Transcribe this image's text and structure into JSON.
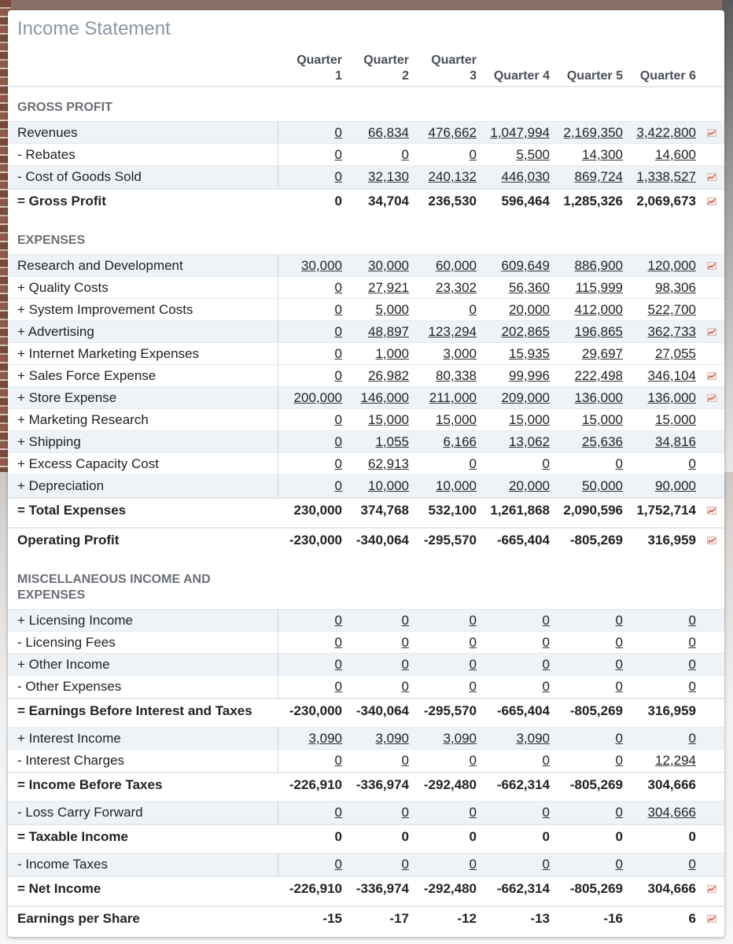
{
  "title": "Income Statement",
  "columns": [
    "Quarter 1",
    "Quarter 2",
    "Quarter 3",
    "Quarter 4",
    "Quarter 5",
    "Quarter 6"
  ],
  "column_headers": [
    [
      "Quarter",
      "1"
    ],
    [
      "Quarter",
      "2"
    ],
    [
      "Quarter",
      "3"
    ],
    [
      "",
      "Quarter 4"
    ],
    [
      "",
      "Quarter 5"
    ],
    [
      "",
      "Quarter 6"
    ]
  ],
  "sections": [
    {
      "title": "GROSS PROFIT"
    },
    {
      "title": "EXPENSES"
    },
    {
      "title": "MISCELLANEOUS INCOME AND EXPENSES"
    }
  ],
  "rows": [
    {
      "label": "Revenues",
      "values": [
        "0",
        "66,834",
        "476,662",
        "1,047,994",
        "2,169,350",
        "3,422,800"
      ],
      "kind": "input",
      "chart": true
    },
    {
      "label": "- Rebates",
      "values": [
        "0",
        "0",
        "0",
        "5,500",
        "14,300",
        "14,600"
      ],
      "kind": "input",
      "chart": false
    },
    {
      "label": "- Cost of Goods Sold",
      "values": [
        "0",
        "32,130",
        "240,132",
        "446,030",
        "869,724",
        "1,338,527"
      ],
      "kind": "input",
      "chart": true
    },
    {
      "label": "= Gross Profit",
      "values": [
        "0",
        "34,704",
        "236,530",
        "596,464",
        "1,285,326",
        "2,069,673"
      ],
      "kind": "total",
      "chart": true
    },
    {
      "label": "Research and Development",
      "values": [
        "30,000",
        "30,000",
        "60,000",
        "609,649",
        "886,900",
        "120,000"
      ],
      "kind": "input",
      "chart": true
    },
    {
      "label": "+ Quality Costs",
      "values": [
        "0",
        "27,921",
        "23,302",
        "56,360",
        "115,999",
        "98,306"
      ],
      "kind": "input",
      "chart": false
    },
    {
      "label": "+ System Improvement Costs",
      "values": [
        "0",
        "5,000",
        "0",
        "20,000",
        "412,000",
        "522,700"
      ],
      "kind": "input",
      "chart": false
    },
    {
      "label": "+ Advertising",
      "values": [
        "0",
        "48,897",
        "123,294",
        "202,865",
        "196,865",
        "362,733"
      ],
      "kind": "input",
      "chart": true
    },
    {
      "label": "+ Internet Marketing Expenses",
      "values": [
        "0",
        "1,000",
        "3,000",
        "15,935",
        "29,697",
        "27,055"
      ],
      "kind": "input",
      "chart": false
    },
    {
      "label": "+ Sales Force Expense",
      "values": [
        "0",
        "26,982",
        "80,338",
        "99,996",
        "222,498",
        "346,104"
      ],
      "kind": "input",
      "chart": true
    },
    {
      "label": "+ Store Expense",
      "values": [
        "200,000",
        "146,000",
        "211,000",
        "209,000",
        "136,000",
        "136,000"
      ],
      "kind": "input",
      "chart": true
    },
    {
      "label": "+ Marketing Research",
      "values": [
        "0",
        "15,000",
        "15,000",
        "15,000",
        "15,000",
        "15,000"
      ],
      "kind": "input",
      "chart": false
    },
    {
      "label": "+ Shipping",
      "values": [
        "0",
        "1,055",
        "6,166",
        "13,062",
        "25,636",
        "34,816"
      ],
      "kind": "input",
      "chart": false
    },
    {
      "label": "+ Excess Capacity Cost",
      "values": [
        "0",
        "62,913",
        "0",
        "0",
        "0",
        "0"
      ],
      "kind": "input",
      "chart": false
    },
    {
      "label": "+ Depreciation",
      "values": [
        "0",
        "10,000",
        "10,000",
        "20,000",
        "50,000",
        "90,000"
      ],
      "kind": "input",
      "chart": false
    },
    {
      "label": "= Total Expenses",
      "values": [
        "230,000",
        "374,768",
        "532,100",
        "1,261,868",
        "2,090,596",
        "1,752,714"
      ],
      "kind": "total",
      "chart": true
    },
    {
      "label": "Operating Profit",
      "values": [
        "-230,000",
        "-340,064",
        "-295,570",
        "-665,404",
        "-805,269",
        "316,959"
      ],
      "kind": "total",
      "chart": true
    },
    {
      "label": "+ Licensing Income",
      "values": [
        "0",
        "0",
        "0",
        "0",
        "0",
        "0"
      ],
      "kind": "input",
      "chart": false
    },
    {
      "label": "- Licensing Fees",
      "values": [
        "0",
        "0",
        "0",
        "0",
        "0",
        "0"
      ],
      "kind": "input",
      "chart": false
    },
    {
      "label": "+ Other Income",
      "values": [
        "0",
        "0",
        "0",
        "0",
        "0",
        "0"
      ],
      "kind": "input",
      "chart": false
    },
    {
      "label": "- Other Expenses",
      "values": [
        "0",
        "0",
        "0",
        "0",
        "0",
        "0"
      ],
      "kind": "input",
      "chart": false
    },
    {
      "label": "= Earnings Before Interest and Taxes",
      "values": [
        "-230,000",
        "-340,064",
        "-295,570",
        "-665,404",
        "-805,269",
        "316,959"
      ],
      "kind": "total",
      "chart": false
    },
    {
      "label": "+ Interest Income",
      "values": [
        "3,090",
        "3,090",
        "3,090",
        "3,090",
        "0",
        "0"
      ],
      "kind": "input",
      "chart": false
    },
    {
      "label": "- Interest Charges",
      "values": [
        "0",
        "0",
        "0",
        "0",
        "0",
        "12,294"
      ],
      "kind": "input",
      "chart": false
    },
    {
      "label": "= Income Before Taxes",
      "values": [
        "-226,910",
        "-336,974",
        "-292,480",
        "-662,314",
        "-805,269",
        "304,666"
      ],
      "kind": "total",
      "chart": false
    },
    {
      "label": "- Loss Carry Forward",
      "values": [
        "0",
        "0",
        "0",
        "0",
        "0",
        "304,666"
      ],
      "kind": "input",
      "chart": false
    },
    {
      "label": "= Taxable Income",
      "values": [
        "0",
        "0",
        "0",
        "0",
        "0",
        "0"
      ],
      "kind": "total",
      "chart": false
    },
    {
      "label": "- Income Taxes",
      "values": [
        "0",
        "0",
        "0",
        "0",
        "0",
        "0"
      ],
      "kind": "input",
      "chart": false
    },
    {
      "label": "= Net Income",
      "values": [
        "-226,910",
        "-336,974",
        "-292,480",
        "-662,314",
        "-805,269",
        "304,666"
      ],
      "kind": "total",
      "chart": true
    },
    {
      "label": "Earnings per Share",
      "values": [
        "-15",
        "-17",
        "-12",
        "-13",
        "-16",
        "6"
      ],
      "kind": "total",
      "chart": true
    }
  ],
  "icons": {
    "chart": "mini-line-chart-icon"
  },
  "colors": {
    "title": "#8a96a3",
    "alt_row": "#eef3f8",
    "chart_icon": "#c0392b"
  }
}
